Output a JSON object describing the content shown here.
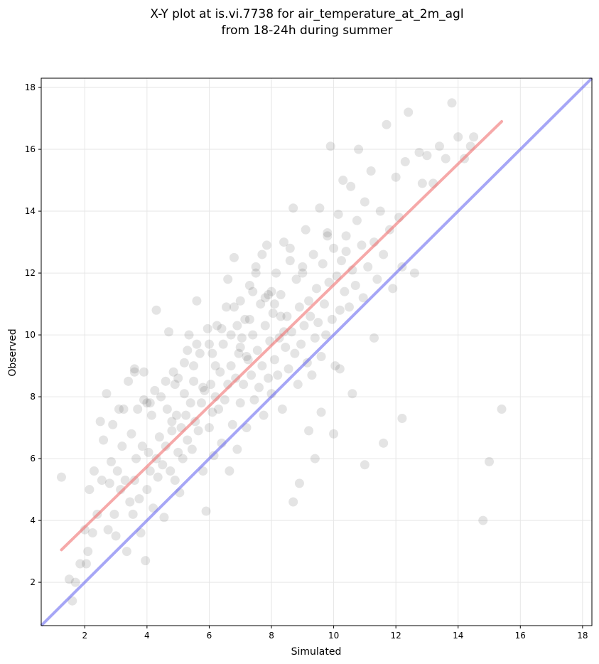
{
  "chart_data": {
    "type": "scatter",
    "title_line1": "X-Y plot at is.vi.7738 for air_temperature_at_2m_agl",
    "title_line2": "from 18-24h during summer",
    "xlabel": "Simulated",
    "ylabel": "Observed",
    "xlim": [
      0.6,
      18.3
    ],
    "ylim": [
      0.6,
      18.3
    ],
    "xticks": [
      2,
      4,
      6,
      8,
      10,
      12,
      14,
      16,
      18
    ],
    "yticks": [
      2,
      4,
      6,
      8,
      10,
      12,
      14,
      16,
      18
    ],
    "grid": true,
    "colors": {
      "points": "#404040",
      "fit_line": "#f07070",
      "identity_line": "#6b6bf0",
      "grid": "#e6e6e6"
    },
    "fit_line": {
      "x": [
        1.25,
        15.4
      ],
      "y": [
        3.05,
        16.9
      ]
    },
    "identity_line": {
      "x": [
        0.6,
        18.3
      ],
      "y": [
        0.6,
        18.3
      ]
    },
    "points_x": [
      1.25,
      1.5,
      1.6,
      1.7,
      1.85,
      2.0,
      2.05,
      2.1,
      2.15,
      2.25,
      2.3,
      2.4,
      2.5,
      2.55,
      2.6,
      2.7,
      2.75,
      2.8,
      2.85,
      2.9,
      2.95,
      3.0,
      3.05,
      3.1,
      3.15,
      3.2,
      3.25,
      3.3,
      3.35,
      3.4,
      3.45,
      3.5,
      3.55,
      3.6,
      3.6,
      3.65,
      3.7,
      3.75,
      3.8,
      3.85,
      3.9,
      3.95,
      4.0,
      4.0,
      4.05,
      4.1,
      4.15,
      4.2,
      4.25,
      4.3,
      4.35,
      4.4,
      4.45,
      4.5,
      4.55,
      4.6,
      4.65,
      4.7,
      4.75,
      4.8,
      4.85,
      4.9,
      4.95,
      5.0,
      5.0,
      5.05,
      5.1,
      5.15,
      5.2,
      5.25,
      5.3,
      5.35,
      5.4,
      5.45,
      5.5,
      5.55,
      5.6,
      5.65,
      5.7,
      5.75,
      5.8,
      5.85,
      5.9,
      5.95,
      6.0,
      6.0,
      6.05,
      6.1,
      6.15,
      6.2,
      6.25,
      6.3,
      6.35,
      6.4,
      6.45,
      6.5,
      6.55,
      6.6,
      6.65,
      6.7,
      6.75,
      6.8,
      6.85,
      6.9,
      6.95,
      7.0,
      7.0,
      7.05,
      7.1,
      7.15,
      7.2,
      7.25,
      7.3,
      7.35,
      7.4,
      7.45,
      7.5,
      7.55,
      7.6,
      7.65,
      7.7,
      7.75,
      7.8,
      7.85,
      7.9,
      7.95,
      8.0,
      8.0,
      8.05,
      8.1,
      8.15,
      8.2,
      8.25,
      8.3,
      8.35,
      8.4,
      8.45,
      8.5,
      8.55,
      8.6,
      8.65,
      8.7,
      8.75,
      8.8,
      8.85,
      8.9,
      8.95,
      9.0,
      9.05,
      9.1,
      9.15,
      9.2,
      9.25,
      9.3,
      9.35,
      9.4,
      9.45,
      9.5,
      9.55,
      9.6,
      9.65,
      9.7,
      9.75,
      9.8,
      9.85,
      9.9,
      9.95,
      10.0,
      10.05,
      10.1,
      10.15,
      10.2,
      10.25,
      10.3,
      10.35,
      10.4,
      10.5,
      10.55,
      10.6,
      10.7,
      10.75,
      10.8,
      10.9,
      10.95,
      11.0,
      11.1,
      11.2,
      11.3,
      11.4,
      11.5,
      11.6,
      11.7,
      11.8,
      11.9,
      12.0,
      12.1,
      12.2,
      12.3,
      12.4,
      12.6,
      12.75,
      12.85,
      13.0,
      13.2,
      13.4,
      13.6,
      13.8,
      14.0,
      14.2,
      14.4,
      14.5,
      14.8,
      15.0,
      15.4,
      3.6,
      4.8,
      5.3,
      6.2,
      6.8,
      7.4,
      8.6,
      9.2,
      10.6,
      11.3,
      5.8,
      6.6,
      7.2,
      7.8,
      8.3,
      8.9,
      9.6,
      10.2,
      4.3,
      5.6,
      6.9,
      7.5,
      8.1,
      8.7,
      9.4,
      10.0,
      3.9,
      4.6,
      5.2,
      6.4,
      7.0,
      7.7,
      8.4,
      9.0,
      9.8,
      10.4,
      11.0,
      11.6,
      12.2,
      4.1,
      4.9,
      5.5,
      6.1,
      6.7,
      7.3,
      7.9,
      8.5,
      9.1,
      9.7
    ],
    "points_y": [
      5.4,
      2.1,
      1.4,
      2.0,
      2.6,
      3.7,
      2.6,
      3.0,
      5.0,
      3.6,
      5.6,
      4.2,
      7.2,
      5.3,
      6.6,
      8.1,
      3.7,
      5.2,
      5.9,
      7.1,
      4.2,
      3.5,
      5.6,
      7.6,
      5.0,
      6.4,
      7.6,
      5.3,
      3.0,
      8.5,
      4.6,
      6.8,
      4.2,
      5.3,
      8.9,
      6.0,
      7.6,
      4.7,
      3.6,
      6.4,
      8.8,
      2.7,
      5.0,
      7.8,
      6.2,
      5.6,
      7.4,
      4.4,
      8.2,
      6.0,
      5.4,
      6.7,
      8.0,
      5.8,
      4.1,
      6.4,
      7.6,
      10.1,
      5.6,
      6.9,
      8.8,
      5.3,
      7.4,
      6.2,
      8.6,
      4.9,
      7.0,
      6.0,
      8.1,
      7.4,
      6.6,
      10.0,
      7.8,
      6.3,
      8.5,
      7.2,
      11.1,
      6.9,
      9.4,
      7.8,
      5.6,
      8.2,
      4.3,
      10.2,
      7.0,
      9.7,
      8.4,
      7.5,
      6.1,
      9.0,
      10.3,
      7.6,
      8.8,
      6.5,
      9.7,
      7.9,
      10.9,
      8.4,
      5.6,
      9.0,
      7.1,
      12.5,
      8.6,
      6.3,
      9.4,
      7.8,
      11.1,
      9.9,
      8.4,
      10.5,
      7.0,
      9.2,
      11.6,
      8.7,
      10.0,
      7.9,
      12.2,
      9.5,
      8.3,
      11.0,
      9.0,
      7.4,
      10.3,
      12.9,
      8.6,
      9.8,
      11.4,
      8.1,
      10.7,
      9.2,
      12.0,
      8.7,
      9.9,
      11.3,
      7.6,
      13.0,
      9.6,
      10.6,
      8.9,
      12.4,
      10.1,
      14.1,
      9.4,
      11.8,
      8.4,
      10.9,
      9.7,
      12.0,
      10.3,
      13.4,
      9.1,
      11.1,
      10.6,
      8.7,
      12.6,
      9.9,
      11.5,
      10.4,
      14.1,
      9.3,
      12.3,
      11.0,
      10.0,
      13.2,
      11.7,
      16.1,
      10.5,
      12.8,
      9.0,
      11.9,
      13.9,
      10.8,
      12.4,
      15.0,
      11.4,
      13.2,
      10.9,
      14.8,
      12.1,
      11.6,
      13.7,
      16.0,
      12.9,
      11.2,
      14.3,
      12.2,
      15.3,
      13.0,
      11.8,
      14.0,
      12.6,
      16.8,
      13.4,
      11.5,
      15.1,
      13.8,
      12.2,
      15.6,
      17.2,
      12.0,
      15.9,
      14.9,
      15.8,
      14.9,
      16.1,
      15.7,
      17.5,
      16.4,
      15.7,
      16.1,
      16.4,
      4.0,
      5.9,
      7.6,
      8.8,
      7.2,
      9.5,
      8.0,
      10.9,
      11.4,
      12.8,
      6.9,
      8.1,
      9.9,
      8.3,
      11.8,
      9.3,
      11.2,
      10.6,
      5.2,
      7.5,
      8.9,
      10.8,
      9.7,
      10.3,
      12.0,
      11.0,
      4.6,
      6.0,
      6.8,
      7.9,
      8.5,
      9.1,
      10.2,
      9.6,
      12.6,
      10.1,
      12.2,
      13.3,
      12.7,
      5.8,
      6.5,
      7.3,
      7.8,
      8.4,
      9.0,
      9.4,
      10.0,
      10.5,
      11.3
    ]
  }
}
